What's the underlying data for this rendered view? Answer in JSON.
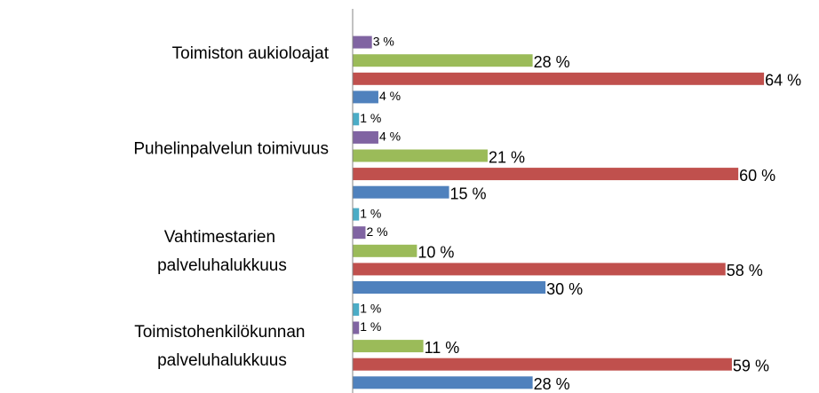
{
  "chart_data": {
    "type": "hbar",
    "categories": [
      "Toimiston aukioloajat",
      "Puhelinpalvelun toimivuus",
      "Vahtimestarien palveluhalukkuus",
      "Toimistohenkilökunnan palveluhalukkuus"
    ],
    "series": [
      {
        "color": "#4bacc6",
        "values": [
          null,
          1,
          1,
          1
        ],
        "value_labels": [
          null,
          "1 %",
          "1 %",
          "1 %"
        ]
      },
      {
        "color": "#8064a2",
        "values": [
          3,
          4,
          2,
          1
        ],
        "value_labels": [
          "3 %",
          "4 %",
          "2 %",
          "1 %"
        ]
      },
      {
        "color": "#9bbb59",
        "values": [
          28,
          21,
          10,
          11
        ],
        "value_labels": [
          "28 %",
          "21 %",
          "10 %",
          "11 %"
        ]
      },
      {
        "color": "#c0504d",
        "values": [
          64,
          60,
          58,
          59
        ],
        "value_labels": [
          "64 %",
          "60 %",
          "58 %",
          "59 %"
        ]
      },
      {
        "color": "#4f81bd",
        "values": [
          4,
          15,
          30,
          28
        ],
        "value_labels": [
          "4 %",
          "15 %",
          "30 %",
          "28 %"
        ]
      }
    ],
    "xlim": [
      0,
      72
    ]
  }
}
